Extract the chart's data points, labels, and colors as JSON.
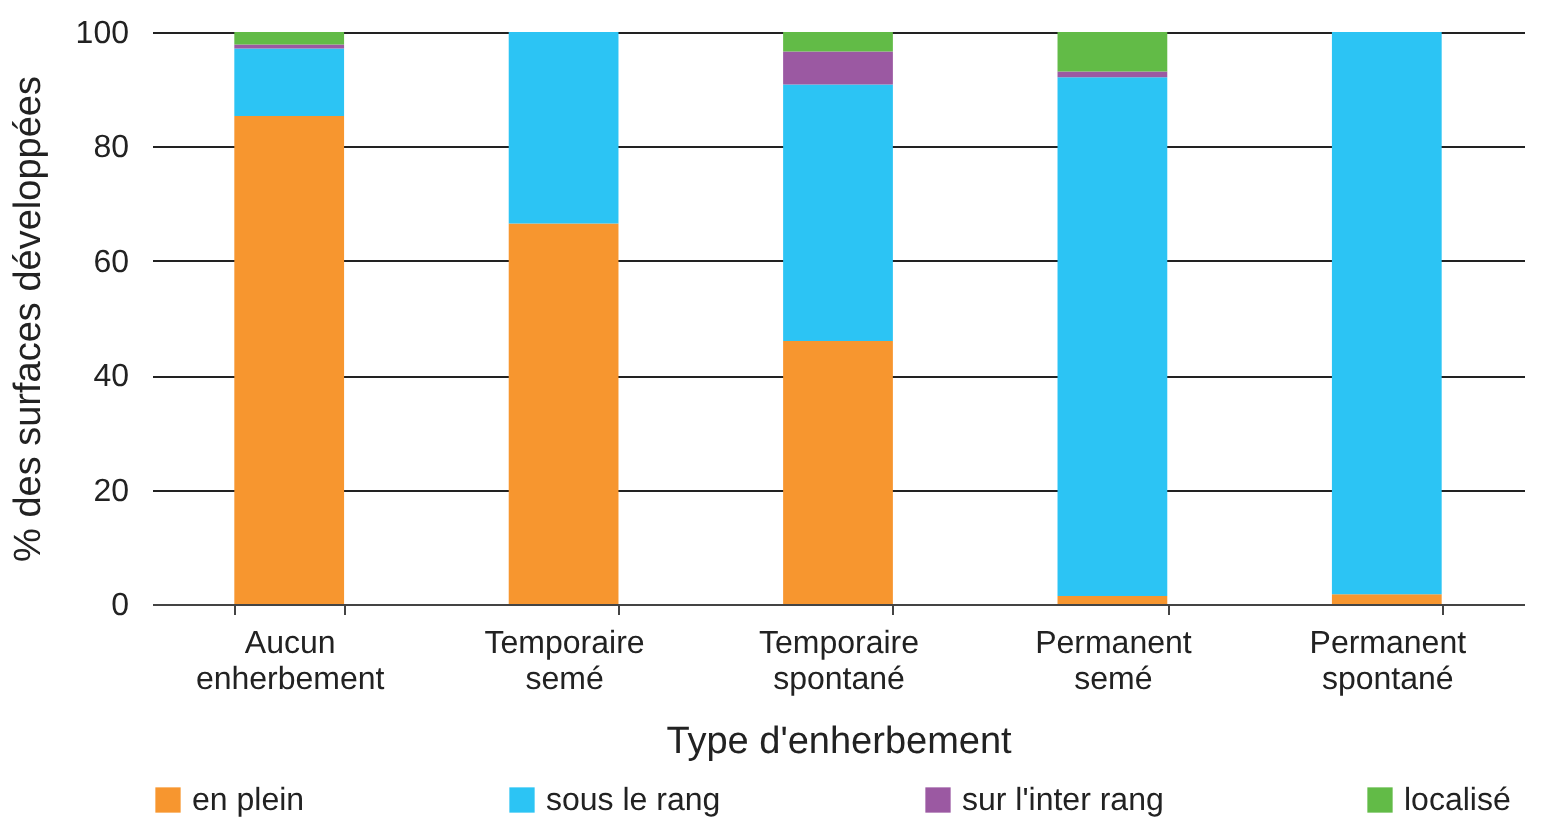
{
  "chart_data": {
    "type": "bar",
    "stacked": true,
    "xlabel": "Type d'enherbement",
    "ylabel": "% des surfaces développées",
    "categories": [
      "Aucun enherbement",
      "Temporaire semé",
      "Temporaire spontané",
      "Permanent semé",
      "Permanent spontané"
    ],
    "series": [
      {
        "name": "en plein",
        "color": "#f7962f",
        "values": [
          85.3,
          66.5,
          46,
          1.4,
          1.7
        ]
      },
      {
        "name": "sous le rang",
        "color": "#2cc4f4",
        "values": [
          11.8,
          33.5,
          44.8,
          90.7,
          98.3
        ]
      },
      {
        "name": "sur l'inter rang",
        "color": "#9b59a2",
        "values": [
          0.7,
          0,
          5.8,
          1.0,
          0
        ]
      },
      {
        "name": "localisé",
        "color": "#62bb47",
        "values": [
          2.2,
          0,
          3.4,
          6.9,
          0
        ]
      }
    ],
    "ylim": [
      0,
      100
    ],
    "yticks": [
      0,
      20,
      40,
      60,
      80,
      100
    ],
    "grid": "y",
    "legend": "bottom"
  }
}
